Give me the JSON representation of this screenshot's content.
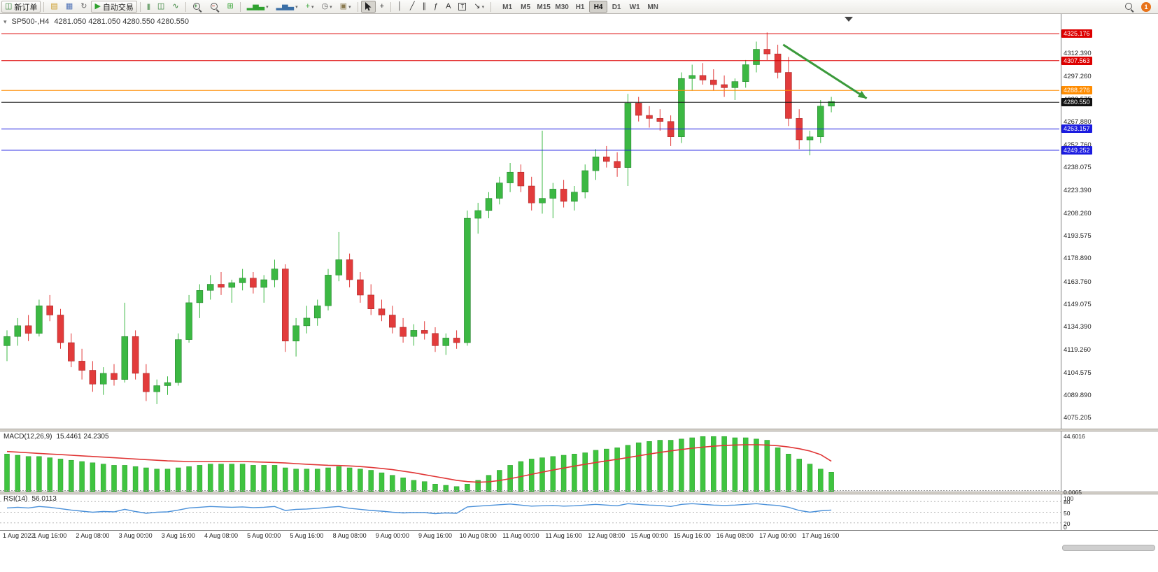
{
  "toolbar": {
    "items": [
      {
        "kind": "button",
        "name": "new-order-button",
        "icon": "new-order-icon",
        "glyph": "◫",
        "color": "#2e7d32",
        "label": "新订单"
      },
      {
        "kind": "sep"
      },
      {
        "kind": "tool",
        "name": "profiles-button",
        "icon": "profiles-icon",
        "glyph": "▤",
        "color": "#c9971c"
      },
      {
        "kind": "tool",
        "name": "charts-button",
        "icon": "chart-window-icon",
        "glyph": "▦",
        "color": "#4a6fb5"
      },
      {
        "kind": "tool",
        "name": "refresh-button",
        "icon": "refresh-icon",
        "glyph": "↻",
        "color": "#6b6b6b"
      },
      {
        "kind": "button",
        "name": "auto-trading-button",
        "icon": "autotrade-play-icon",
        "glyph": "▶",
        "color": "#2fa12f",
        "label": "自动交易"
      },
      {
        "kind": "sep"
      },
      {
        "kind": "tool",
        "name": "bar-chart-button",
        "icon": "bar-chart-icon",
        "glyph": "|||",
        "color": "#2e7d32"
      },
      {
        "kind": "tool",
        "name": "candlestick-chart-button",
        "icon": "candlestick-icon",
        "glyph": "◫",
        "color": "#2e7d32"
      },
      {
        "kind": "tool",
        "name": "line-chart-button",
        "icon": "line-chart-icon",
        "glyph": "∿",
        "color": "#2e7d32"
      },
      {
        "kind": "sep"
      },
      {
        "kind": "tool",
        "name": "zoom-in-button",
        "icon": "zoom-in-icon",
        "magnifier": "+",
        "color": "#2e7d32"
      },
      {
        "kind": "tool",
        "name": "zoom-out-button",
        "icon": "zoom-out-icon",
        "magnifier": "−",
        "color": "#c0392b"
      },
      {
        "kind": "tool",
        "name": "tile-windows-button",
        "icon": "tile-windows-icon",
        "glyph": "⊞",
        "color": "#2fa12f"
      },
      {
        "kind": "sep"
      },
      {
        "kind": "tool",
        "name": "indicators-button",
        "icon": "indicators-icon",
        "glyph": "▂▅▃",
        "color": "#2fa12f",
        "dropdown": true
      },
      {
        "kind": "tool",
        "name": "indicator-windows-button",
        "icon": "indicator-window-icon",
        "glyph": "▂▅▃",
        "color": "#3a6ea5",
        "dropdown": true
      },
      {
        "kind": "tool",
        "name": "add-indicator-button",
        "icon": "add-indicator-icon",
        "glyph": "+",
        "color": "#2fa12f",
        "dropdown": true
      },
      {
        "kind": "tool",
        "name": "periods-button",
        "icon": "clock-icon",
        "glyph": "◷",
        "color": "#555555",
        "dropdown": true
      },
      {
        "kind": "tool",
        "name": "templates-button",
        "icon": "template-icon",
        "glyph": "▣",
        "color": "#8a7a50",
        "dropdown": true
      },
      {
        "kind": "sep"
      },
      {
        "kind": "tool",
        "name": "cursor-button",
        "icon": "cursor-icon",
        "svg": "cursor",
        "pressed": true
      },
      {
        "kind": "tool",
        "name": "crosshair-button",
        "icon": "crosshair-icon",
        "glyph": "+",
        "color": "#333333"
      },
      {
        "kind": "sep"
      },
      {
        "kind": "tool",
        "name": "vertical-line-button",
        "icon": "vertical-line-icon",
        "glyph": "│",
        "color": "#333333"
      },
      {
        "kind": "tool",
        "name": "trendline-button",
        "icon": "trendline-icon",
        "glyph": "╱",
        "color": "#333333"
      },
      {
        "kind": "tool",
        "name": "channel-button",
        "icon": "channel-icon",
        "glyph": "∥",
        "color": "#333333"
      },
      {
        "kind": "tool",
        "name": "fibonacci-button",
        "icon": "fibonacci-icon",
        "glyph": "ƒ",
        "color": "#333333"
      },
      {
        "kind": "tool",
        "name": "text-tool-button",
        "icon": "text-icon",
        "glyph": "A",
        "color": "#333333"
      },
      {
        "kind": "tool",
        "name": "label-tool-button",
        "icon": "label-icon",
        "glyph": "T",
        "color": "#333333",
        "boxed": true
      },
      {
        "kind": "tool",
        "name": "shapes-button",
        "icon": "arrow-shapes-icon",
        "glyph": "↘",
        "color": "#333333",
        "dropdown": true
      },
      {
        "kind": "sep"
      }
    ],
    "timeframes": [
      "M1",
      "M5",
      "M15",
      "M30",
      "H1",
      "H4",
      "D1",
      "W1",
      "MN"
    ],
    "active_timeframe": "H4",
    "right": {
      "badge": "1"
    }
  },
  "chart_ui": {
    "collapse_glyph": "▾"
  },
  "chart_data": {
    "type": "candlestick",
    "title": "SP500-,H4",
    "symbol": "SP500-",
    "timeframe": "H4",
    "ohlc_text": "4281.050 4281.050 4280.550 4280.550",
    "price_range": [
      4068,
      4338
    ],
    "colors": {
      "bull": "#3cb843",
      "bear": "#e23b3b",
      "macd_histogram": "#3fc43f",
      "macd_signal": "#e03636",
      "rsi_line": "#4a90d9"
    },
    "price_axis_ticks": [
      "4312.390",
      "4297.260",
      "4282.575",
      "4267.880",
      "4252.760",
      "4238.075",
      "4223.390",
      "4208.260",
      "4193.575",
      "4178.890",
      "4163.760",
      "4149.075",
      "4134.390",
      "4119.260",
      "4104.575",
      "4089.890",
      "4075.205"
    ],
    "hlines": [
      {
        "price": 4325.176,
        "label": "4325.176",
        "color": "#dd0000"
      },
      {
        "price": 4307.563,
        "label": "4307.563",
        "color": "#dd0000"
      },
      {
        "price": 4288.276,
        "label": "4288.276",
        "color": "#ff8c00"
      },
      {
        "price": 4280.55,
        "label": "4280.550",
        "color": "#111111"
      },
      {
        "price": 4263.157,
        "label": "4263.157",
        "color": "#1b1be0"
      },
      {
        "price": 4249.252,
        "label": "4249.252",
        "color": "#1b1be0"
      }
    ],
    "time_labels": [
      "1 Aug 2022",
      "1 Aug 16:00",
      "2 Aug 08:00",
      "3 Aug 00:00",
      "3 Aug 16:00",
      "4 Aug 08:00",
      "5 Aug 00:00",
      "5 Aug 16:00",
      "8 Aug 08:00",
      "9 Aug 00:00",
      "9 Aug 16:00",
      "10 Aug 08:00",
      "11 Aug 00:00",
      "11 Aug 16:00",
      "12 Aug 08:00",
      "15 Aug 00:00",
      "15 Aug 16:00",
      "16 Aug 08:00",
      "17 Aug 00:00",
      "17 Aug 16:00"
    ],
    "label_every": 4,
    "candles": [
      [
        4122,
        4132,
        4112,
        4128
      ],
      [
        4128,
        4140,
        4122,
        4135
      ],
      [
        4135,
        4142,
        4125,
        4130
      ],
      [
        4130,
        4152,
        4128,
        4148
      ],
      [
        4148,
        4155,
        4138,
        4142
      ],
      [
        4142,
        4146,
        4120,
        4124
      ],
      [
        4124,
        4130,
        4108,
        4112
      ],
      [
        4112,
        4120,
        4100,
        4106
      ],
      [
        4106,
        4112,
        4092,
        4097
      ],
      [
        4097,
        4108,
        4090,
        4104
      ],
      [
        4104,
        4110,
        4096,
        4100
      ],
      [
        4100,
        4150,
        4098,
        4128
      ],
      [
        4128,
        4132,
        4100,
        4104
      ],
      [
        4104,
        4110,
        4086,
        4092
      ],
      [
        4092,
        4100,
        4084,
        4096
      ],
      [
        4096,
        4102,
        4090,
        4098
      ],
      [
        4098,
        4130,
        4096,
        4126
      ],
      [
        4126,
        4155,
        4124,
        4150
      ],
      [
        4150,
        4162,
        4140,
        4158
      ],
      [
        4158,
        4168,
        4152,
        4162
      ],
      [
        4162,
        4170,
        4155,
        4160
      ],
      [
        4160,
        4165,
        4150,
        4163
      ],
      [
        4163,
        4172,
        4158,
        4166
      ],
      [
        4166,
        4170,
        4156,
        4160
      ],
      [
        4160,
        4168,
        4150,
        4165
      ],
      [
        4165,
        4178,
        4160,
        4172
      ],
      [
        4172,
        4175,
        4118,
        4125
      ],
      [
        4125,
        4140,
        4115,
        4135
      ],
      [
        4135,
        4148,
        4130,
        4140
      ],
      [
        4140,
        4152,
        4135,
        4148
      ],
      [
        4148,
        4172,
        4145,
        4168
      ],
      [
        4168,
        4196,
        4164,
        4178
      ],
      [
        4178,
        4182,
        4160,
        4165
      ],
      [
        4165,
        4170,
        4150,
        4155
      ],
      [
        4155,
        4162,
        4142,
        4146
      ],
      [
        4146,
        4152,
        4138,
        4142
      ],
      [
        4142,
        4148,
        4130,
        4134
      ],
      [
        4134,
        4140,
        4124,
        4128
      ],
      [
        4128,
        4136,
        4122,
        4132
      ],
      [
        4132,
        4138,
        4126,
        4130
      ],
      [
        4130,
        4134,
        4118,
        4122
      ],
      [
        4122,
        4130,
        4116,
        4127
      ],
      [
        4127,
        4132,
        4120,
        4124
      ],
      [
        4124,
        4210,
        4122,
        4205
      ],
      [
        4205,
        4215,
        4195,
        4210
      ],
      [
        4210,
        4222,
        4205,
        4218
      ],
      [
        4218,
        4232,
        4214,
        4228
      ],
      [
        4228,
        4241,
        4222,
        4235
      ],
      [
        4235,
        4240,
        4222,
        4226
      ],
      [
        4226,
        4232,
        4210,
        4215
      ],
      [
        4215,
        4262,
        4208,
        4218
      ],
      [
        4218,
        4228,
        4205,
        4224
      ],
      [
        4224,
        4230,
        4212,
        4216
      ],
      [
        4216,
        4226,
        4210,
        4222
      ],
      [
        4222,
        4240,
        4218,
        4236
      ],
      [
        4236,
        4250,
        4230,
        4245
      ],
      [
        4245,
        4252,
        4238,
        4242
      ],
      [
        4242,
        4248,
        4232,
        4238
      ],
      [
        4238,
        4286,
        4226,
        4280
      ],
      [
        4280,
        4284,
        4268,
        4272
      ],
      [
        4272,
        4278,
        4264,
        4270
      ],
      [
        4270,
        4276,
        4262,
        4268
      ],
      [
        4268,
        4272,
        4252,
        4258
      ],
      [
        4258,
        4300,
        4254,
        4296
      ],
      [
        4296,
        4305,
        4288,
        4298
      ],
      [
        4298,
        4306,
        4292,
        4295
      ],
      [
        4295,
        4302,
        4288,
        4292
      ],
      [
        4292,
        4298,
        4284,
        4290
      ],
      [
        4290,
        4296,
        4282,
        4294
      ],
      [
        4294,
        4308,
        4290,
        4305
      ],
      [
        4305,
        4320,
        4300,
        4315
      ],
      [
        4315,
        4326,
        4308,
        4312
      ],
      [
        4312,
        4318,
        4296,
        4300
      ],
      [
        4300,
        4310,
        4265,
        4270
      ],
      [
        4270,
        4276,
        4250,
        4256
      ],
      [
        4256,
        4262,
        4246,
        4258
      ],
      [
        4258,
        4282,
        4254,
        4278
      ],
      [
        4278,
        4284,
        4274,
        4281
      ]
    ],
    "trend_arrow": {
      "from": {
        "bar": 72.5,
        "price": 4318
      },
      "to": {
        "bar": 80.3,
        "price": 4283
      },
      "color": "#3b9a3b"
    },
    "macd": {
      "label": "MACD(12,26,9)",
      "values_text": "15.4461 24.2305",
      "range": [
        0,
        48
      ],
      "axis_ticks": [
        "44.6016",
        "0.0065"
      ],
      "histogram": [
        30,
        29,
        28,
        28,
        27,
        26,
        25,
        24,
        23,
        22,
        21,
        21,
        20,
        19,
        18,
        18,
        19,
        20,
        21,
        22,
        22,
        22,
        22,
        21,
        21,
        21,
        19,
        18,
        18,
        18,
        19,
        20,
        19,
        18,
        17,
        15,
        13,
        11,
        9,
        8,
        6,
        5,
        4,
        6,
        9,
        13,
        17,
        21,
        24,
        26,
        27,
        28,
        29,
        30,
        31,
        33,
        34,
        35,
        37,
        39,
        40,
        41,
        41,
        42,
        43,
        44,
        44,
        44,
        43,
        43,
        42,
        41,
        35,
        30,
        26,
        22,
        18,
        15.45
      ],
      "signal": [
        32,
        31.5,
        31,
        30.5,
        30,
        29.5,
        29,
        28.5,
        28,
        27.5,
        27,
        26.5,
        26,
        25.5,
        25,
        24.5,
        24.2,
        24,
        24,
        24,
        24,
        24,
        24,
        23.8,
        23.5,
        23.2,
        22.8,
        22.3,
        21.8,
        21.4,
        21,
        20.8,
        20.5,
        20,
        19.3,
        18.5,
        17.5,
        16.3,
        15,
        13.5,
        12,
        10.5,
        9,
        8,
        7.5,
        7.8,
        8.8,
        10.3,
        12,
        13.8,
        15.5,
        17.2,
        18.8,
        20.3,
        21.8,
        23.2,
        24.5,
        25.8,
        27.2,
        28.6,
        30,
        31.3,
        32.5,
        33.6,
        34.6,
        35.5,
        36.2,
        36.8,
        37.2,
        37.4,
        37.4,
        37.2,
        36.6,
        35.6,
        34.2,
        32.4,
        29.5,
        24.23
      ]
    },
    "rsi": {
      "label": "RSI(14)",
      "value_text": "56.0113",
      "levels": [
        80,
        50,
        20
      ],
      "axis_ticks": [
        "100",
        "80",
        "50",
        "20",
        "0"
      ],
      "values": [
        62,
        64,
        62,
        66,
        64,
        60,
        56,
        53,
        50,
        52,
        51,
        58,
        52,
        47,
        50,
        51,
        56,
        62,
        64,
        66,
        65,
        64,
        65,
        63,
        64,
        66,
        55,
        58,
        59,
        61,
        64,
        66,
        61,
        58,
        55,
        53,
        50,
        48,
        49,
        49,
        46,
        48,
        47,
        65,
        67,
        69,
        71,
        73,
        70,
        67,
        68,
        69,
        67,
        68,
        70,
        72,
        70,
        68,
        74,
        72,
        70,
        69,
        66,
        72,
        74,
        72,
        70,
        69,
        70,
        72,
        74,
        71,
        69,
        64,
        55,
        50,
        54,
        56.01
      ]
    }
  }
}
